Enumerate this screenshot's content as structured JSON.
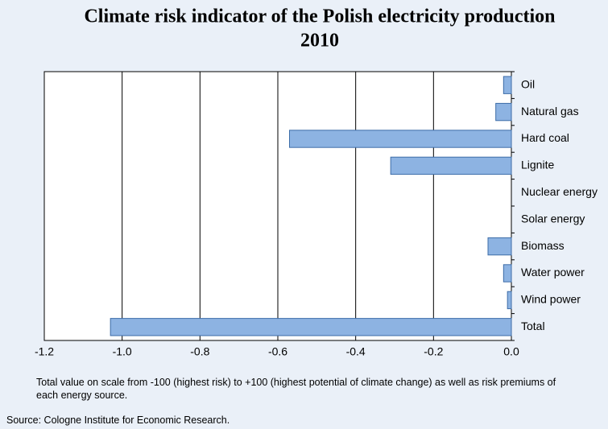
{
  "chart_data": {
    "type": "bar",
    "orientation": "horizontal",
    "title": "Climate risk indicator of the Polish electricity production",
    "subtitle": "2010",
    "categories": [
      "Oil",
      "Natural gas",
      "Hard coal",
      "Lignite",
      "Nuclear energy",
      "Solar energy",
      "Biomass",
      "Water power",
      "Wind power",
      "Total"
    ],
    "values": [
      -0.02,
      -0.04,
      -0.57,
      -0.31,
      0,
      0,
      -0.06,
      -0.02,
      -0.01,
      -1.03
    ],
    "color": "#8db3e2",
    "xlim": [
      -1.2,
      0
    ],
    "xticks": [
      {
        "value": -1.2,
        "label": "-1.2"
      },
      {
        "value": -1,
        "label": "-1.0"
      },
      -0.8,
      -0.6,
      -0.4,
      -0.2,
      {
        "value": 0,
        "label": "0.0"
      }
    ],
    "grid": true,
    "note": "Total value on scale from -100 (highest risk) to +100 (highest potential of climate change) as well as risk premiums of each energy source.",
    "source": "Source: Cologne Institute for Economic Research."
  }
}
